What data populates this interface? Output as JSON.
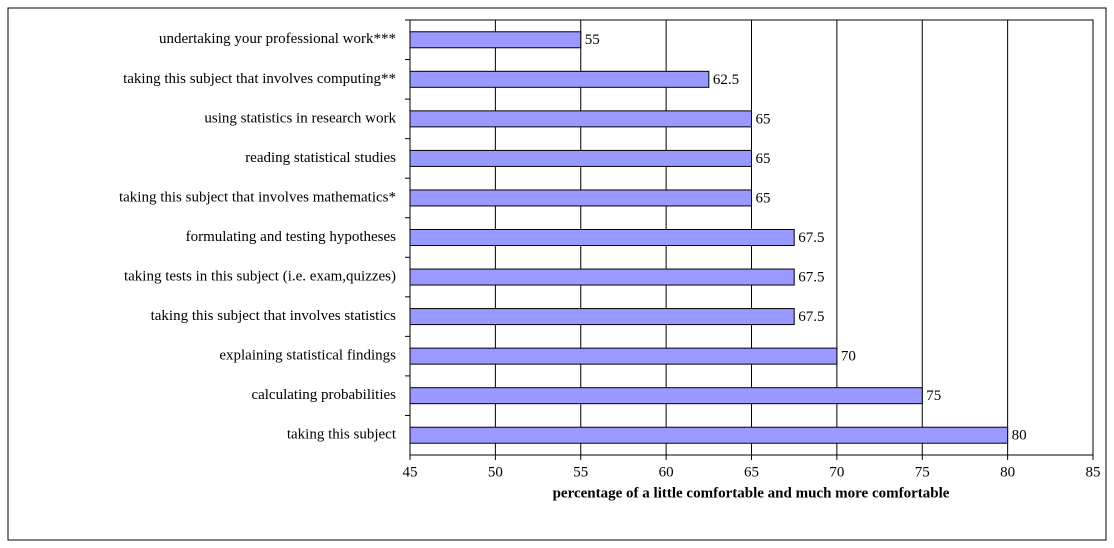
{
  "chart_data": {
    "type": "hbar",
    "xlabel": "percentage of a little comfortable and much more comfortable",
    "categories": [
      "undertaking your professional work***",
      "taking this subject that involves computing**",
      "using statistics in research work",
      "reading statistical studies",
      "taking this subject that involves mathematics*",
      "formulating and testing hypotheses",
      "taking tests in this subject (i.e. exam,quizzes)",
      "taking this subject that involves statistics",
      "explaining statistical findings",
      "calculating probabilities",
      "taking this subject"
    ],
    "values": [
      55,
      62.5,
      65,
      65,
      65,
      67.5,
      67.5,
      67.5,
      70,
      75,
      80
    ],
    "color": "#9999ff",
    "xlim": [
      45,
      85
    ],
    "xticks": [
      45,
      50,
      55,
      60,
      65,
      70,
      75,
      80,
      85
    ],
    "grid": true
  }
}
